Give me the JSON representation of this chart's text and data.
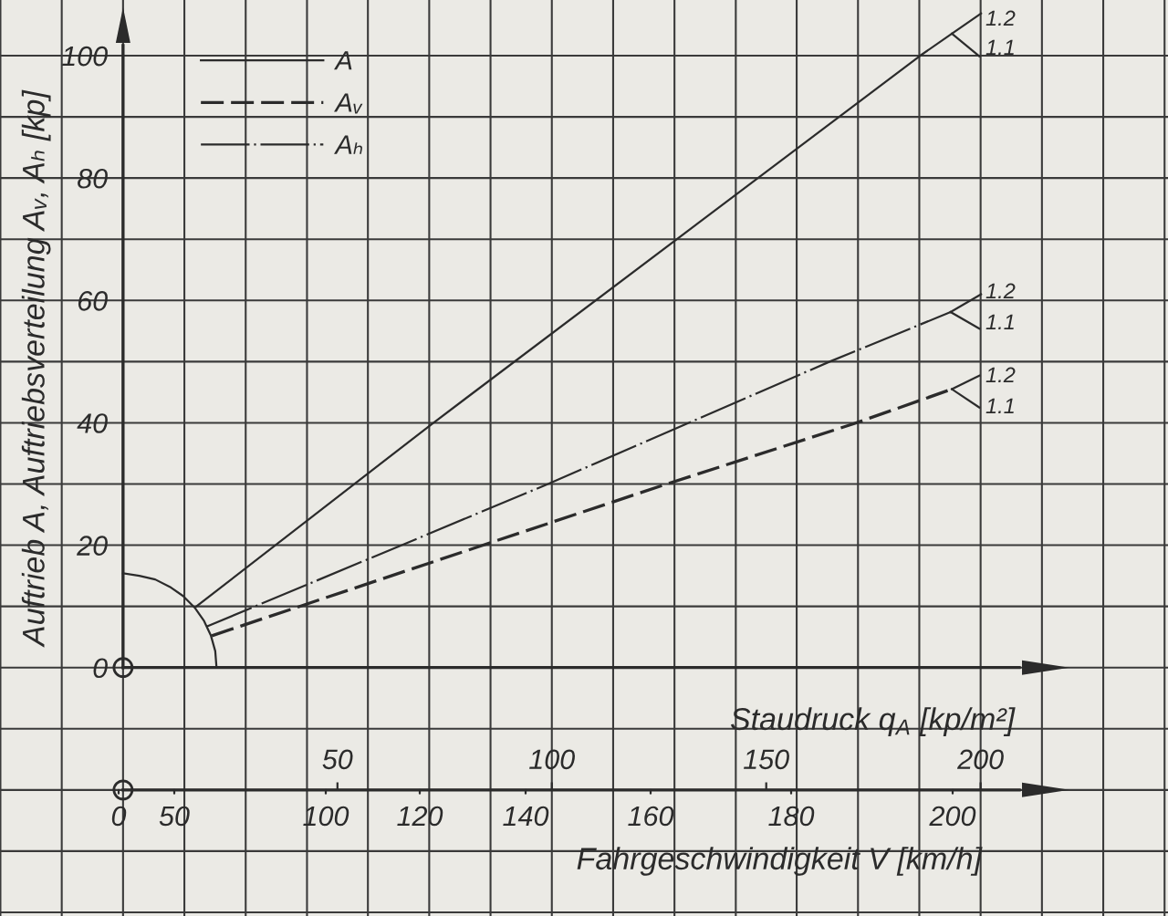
{
  "chart_data": {
    "type": "line",
    "ylabel": "Auftrieb A, Auftriebsverteilung Aᵥ, Aₕ [kp]",
    "xlabel": "Staudruck q$_{A}$ [kp/m²]",
    "xlim": [
      -28.7,
      243.7
    ],
    "xticks": [
      {
        "value": -28.6,
        "label": null
      },
      {
        "value": -14.3,
        "label": null
      },
      {
        "value": 0,
        "label": null
      },
      {
        "value": 14.3,
        "label": null
      },
      {
        "value": 28.6,
        "label": null
      },
      {
        "value": 42.9,
        "label": null
      },
      50,
      {
        "value": 57.1,
        "label": null
      },
      {
        "value": 71.4,
        "label": null
      },
      {
        "value": 85.7,
        "label": null
      },
      {
        "value": 100,
        "label": null
      },
      100,
      {
        "value": 114.3,
        "label": null
      },
      {
        "value": 128.6,
        "label": null
      },
      {
        "value": 142.9,
        "label": null
      },
      150,
      {
        "value": 157.1,
        "label": null
      },
      {
        "value": 171.4,
        "label": null
      },
      {
        "value": 185.7,
        "label": null
      },
      {
        "value": 200,
        "label": null
      },
      200,
      {
        "value": 214.3,
        "label": null
      },
      {
        "value": 228.6,
        "label": null
      },
      {
        "value": 242.9,
        "label": null
      }
    ],
    "ylim": [
      -40.6,
      109.1
    ],
    "yticks": [
      {
        "value": -40,
        "label": null
      },
      {
        "value": -30,
        "label": null
      },
      {
        "value": -20,
        "label": null
      },
      {
        "value": -10,
        "label": null
      },
      0,
      {
        "value": 10,
        "label": null
      },
      20,
      {
        "value": 30,
        "label": null
      },
      40,
      {
        "value": 50,
        "label": null
      },
      60,
      {
        "value": 70,
        "label": null
      },
      80,
      {
        "value": 90,
        "label": null
      },
      100
    ],
    "grid": true,
    "legend": "top left",
    "series": [
      {
        "name": "A",
        "color": "#2b2b2b",
        "line_style": "solid",
        "x": [
          17.1,
          72.0,
          185.9,
          193.3,
          200.1
        ],
        "values": [
          10.0,
          39.8,
          100.0,
          103.6,
          106.9
        ]
      },
      {
        "name": "Aᵥ",
        "color": "#2b2b2b",
        "line_style": "dashed",
        "x": [
          20.7,
          83.5,
          126.8,
          170.2,
          193.3
        ],
        "values": [
          5.2,
          19.9,
          30.0,
          39.8,
          45.5
        ]
      },
      {
        "name": "Aₕ",
        "color": "#2b2b2b",
        "line_style": "dashdot",
        "x": [
          19.5,
          99.1,
          164.8,
          193.0
        ],
        "values": [
          6.7,
          30.0,
          50.0,
          58.1
        ]
      },
      {
        "color": "#2b2b2b",
        "line_style": "solid",
        "x": [
          0,
          3.8,
          7.5,
          10.9,
          14.0,
          16.7,
          18.9,
          20.5,
          21.5,
          21.8
        ],
        "values": [
          15.4,
          15.0,
          14.4,
          13.2,
          11.7,
          9.8,
          7.6,
          5.2,
          2.7,
          0
        ]
      },
      {
        "color": "#2b2b2b",
        "line_style": "solid",
        "x": [
          193.3,
          199.7
        ],
        "values": [
          103.6,
          99.9
        ]
      },
      {
        "color": "#2b2b2b",
        "line_style": "solid",
        "x": [
          193.0,
          200.1
        ],
        "values": [
          58.1,
          61.0
        ]
      },
      {
        "color": "#2b2b2b",
        "line_style": "solid",
        "x": [
          193.0,
          199.7
        ],
        "values": [
          58.1,
          55.4
        ]
      },
      {
        "color": "#2b2b2b",
        "line_style": "solid",
        "x": [
          193.3,
          199.7
        ],
        "values": [
          45.5,
          47.7
        ]
      },
      {
        "color": "#2b2b2b",
        "line_style": "solid",
        "x": [
          193.3,
          199.7
        ],
        "values": [
          45.5,
          42.5
        ]
      }
    ],
    "annotations": [
      "1.2",
      "1.1",
      "1.2",
      "1.1",
      "1.2",
      "1.1",
      "0",
      "50",
      "100",
      "120",
      "140",
      "160",
      "180",
      "200",
      "Fahrgeschwindigkeit V [km/h]"
    ]
  }
}
